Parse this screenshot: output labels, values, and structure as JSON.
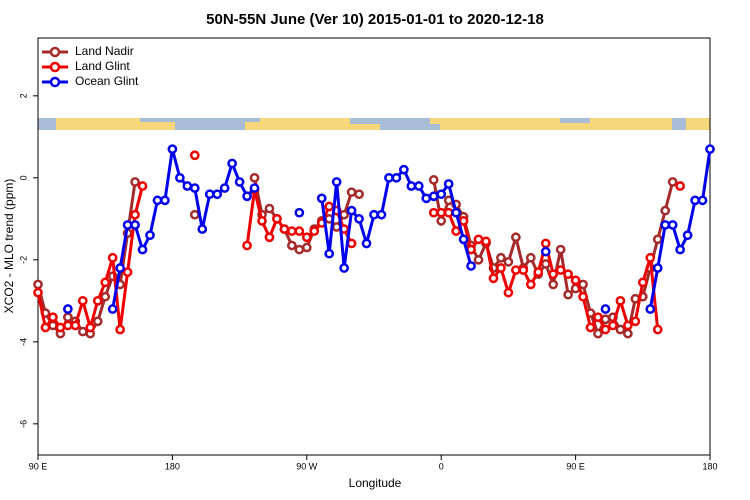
{
  "chart_data": {
    "type": "line",
    "title": "50N-55N June (Ver 10)   2015-01-01 to 2020-12-18",
    "x_label": "Longitude",
    "y_label": "XCO2 - MLO trend (ppm)",
    "xlim": [
      90,
      540
    ],
    "ylim": [
      -6.76,
      3.41
    ],
    "xticks": [
      {
        "value": 90,
        "label": "90 E"
      },
      {
        "value": 180,
        "label": "180"
      },
      {
        "value": 270,
        "label": "90 W"
      },
      {
        "value": 360,
        "label": "0"
      },
      {
        "value": 450,
        "label": "90 E"
      },
      {
        "value": 540,
        "label": "180"
      }
    ],
    "yticks": [
      -6,
      -4,
      -2,
      0,
      2
    ],
    "legend": "top-left",
    "x": [
      90,
      95,
      100,
      105,
      110,
      115,
      120,
      125,
      130,
      135,
      140,
      145,
      150,
      155,
      160,
      165,
      170,
      175,
      180,
      185,
      190,
      195,
      200,
      205,
      210,
      215,
      220,
      225,
      230,
      235,
      240,
      245,
      250,
      255,
      260,
      265,
      270,
      275,
      280,
      285,
      290,
      295,
      300,
      305,
      310,
      315,
      320,
      325,
      330,
      335,
      340,
      345,
      350,
      355,
      360,
      365,
      370,
      375,
      380,
      385,
      390,
      395,
      400,
      405,
      410,
      415,
      420,
      425,
      430,
      435,
      440,
      445,
      450,
      455,
      460,
      465,
      470,
      475,
      480,
      485,
      490,
      495,
      500,
      505,
      510,
      515,
      520,
      525,
      530,
      535,
      540
    ],
    "series": [
      {
        "name": "Land Nadir",
        "color": "#a52a2a",
        "values": [
          -2.6,
          -3.3,
          -3.6,
          -3.8,
          -3.4,
          -3.5,
          -3.75,
          -3.8,
          -3.5,
          -2.9,
          -2.4,
          -2.6,
          -1.35,
          -0.1,
          null,
          null,
          null,
          null,
          null,
          null,
          null,
          -0.9,
          null,
          null,
          null,
          null,
          null,
          null,
          null,
          0,
          -0.9,
          -0.75,
          -1.0,
          -1.25,
          -1.65,
          -1.75,
          -1.7,
          -1.25,
          -1.05,
          -1.0,
          -1.2,
          -0.9,
          -0.35,
          -0.4,
          null,
          null,
          null,
          null,
          null,
          null,
          null,
          null,
          null,
          -0.05,
          -1.05,
          -0.55,
          -0.65,
          -0.95,
          -1.65,
          -2.0,
          -1.6,
          -2.2,
          -1.95,
          -2.05,
          -1.45,
          -2.2,
          -1.95,
          -2.35,
          -2.1,
          -2.6,
          -1.75,
          -2.85,
          -2.7,
          -2.6,
          -3.3,
          -3.8,
          -3.45,
          -3.4,
          -3.7,
          -3.8,
          -2.95,
          -2.9,
          -2.2,
          -1.5,
          -0.8,
          -0.1,
          null,
          null,
          null,
          null,
          null
        ]
      },
      {
        "name": "Land Glint",
        "color": "#ee0000",
        "values": [
          -2.8,
          -3.65,
          -3.4,
          -3.65,
          -3.6,
          -3.6,
          -3.0,
          -3.65,
          -3.0,
          -2.55,
          -1.95,
          -3.7,
          -2.3,
          -0.9,
          -0.2,
          null,
          null,
          null,
          null,
          null,
          null,
          0.55,
          null,
          null,
          null,
          null,
          null,
          null,
          -1.65,
          -0.3,
          -1.05,
          -1.45,
          -1.0,
          -1.25,
          -1.3,
          -1.3,
          -1.45,
          -1.3,
          -1.1,
          -0.7,
          -0.8,
          -1.25,
          -1.6,
          null,
          null,
          null,
          null,
          null,
          null,
          null,
          null,
          null,
          null,
          -0.85,
          -0.85,
          -0.85,
          -1.3,
          -1.05,
          -1.75,
          -1.5,
          -1.55,
          -2.45,
          -2.2,
          -2.8,
          -2.25,
          -2.25,
          -2.6,
          -2.3,
          -1.6,
          -2.35,
          -2.25,
          -2.35,
          -2.5,
          -2.9,
          -3.65,
          -3.4,
          -3.7,
          -3.6,
          -3.0,
          -3.6,
          -3.5,
          -2.55,
          -1.95,
          -3.7,
          null,
          null,
          -0.2,
          null,
          null,
          null,
          null
        ]
      },
      {
        "name": "Ocean Glint",
        "color": "#0000ee",
        "values": [
          null,
          null,
          null,
          null,
          -3.2,
          null,
          null,
          null,
          null,
          null,
          -3.2,
          -2.2,
          -1.15,
          -1.15,
          -1.75,
          -1.4,
          -0.55,
          -0.55,
          0.7,
          0,
          -0.2,
          -0.25,
          -1.25,
          -0.4,
          -0.4,
          -0.25,
          0.35,
          -0.1,
          -0.45,
          -0.25,
          null,
          null,
          null,
          null,
          null,
          -0.85,
          null,
          null,
          -0.5,
          -1.85,
          -0.1,
          -2.2,
          -0.8,
          -1.0,
          -1.6,
          -0.9,
          -0.9,
          0,
          0,
          0.2,
          -0.2,
          -0.2,
          -0.5,
          -0.45,
          -0.4,
          -0.15,
          -0.85,
          -1.5,
          -2.15,
          null,
          null,
          null,
          null,
          null,
          null,
          null,
          null,
          null,
          -1.8,
          null,
          null,
          null,
          null,
          null,
          null,
          null,
          -3.2,
          null,
          null,
          null,
          null,
          null,
          -3.2,
          -2.2,
          -1.15,
          -1.15,
          -1.75,
          -1.4,
          -0.55,
          -0.55,
          0.7
        ]
      }
    ]
  }
}
